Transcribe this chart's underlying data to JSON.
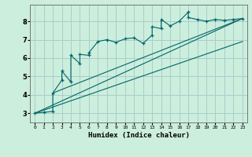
{
  "xlabel": "Humidex (Indice chaleur)",
  "bg_color": "#cceedd",
  "grid_color": "#aacccc",
  "line_color": "#006666",
  "xlim": [
    -0.5,
    23.5
  ],
  "ylim": [
    2.5,
    8.9
  ],
  "xticks": [
    0,
    1,
    2,
    3,
    4,
    5,
    6,
    7,
    8,
    9,
    10,
    11,
    12,
    13,
    14,
    15,
    16,
    17,
    18,
    19,
    20,
    21,
    22,
    23
  ],
  "yticks": [
    3,
    4,
    5,
    6,
    7,
    8
  ],
  "line1_x": [
    0,
    1,
    2,
    2,
    3,
    3,
    4,
    4,
    5,
    5,
    6,
    6,
    7,
    8,
    9,
    10,
    11,
    12,
    13,
    13,
    14,
    14,
    15,
    16,
    17,
    17,
    18,
    19,
    20,
    21,
    22,
    23
  ],
  "line1_y": [
    3.0,
    3.05,
    3.1,
    4.1,
    4.8,
    5.3,
    4.7,
    6.15,
    5.7,
    6.2,
    6.15,
    6.3,
    6.9,
    7.0,
    6.85,
    7.05,
    7.1,
    6.8,
    7.25,
    7.7,
    7.6,
    8.1,
    7.75,
    8.0,
    8.5,
    8.2,
    8.1,
    8.0,
    8.1,
    8.05,
    8.1,
    8.15
  ],
  "line2_x": [
    0,
    23
  ],
  "line2_y": [
    3.0,
    8.15
  ],
  "line3_x": [
    2,
    23
  ],
  "line3_y": [
    4.1,
    8.15
  ],
  "line4_x": [
    0,
    23
  ],
  "line4_y": [
    3.0,
    6.9
  ]
}
